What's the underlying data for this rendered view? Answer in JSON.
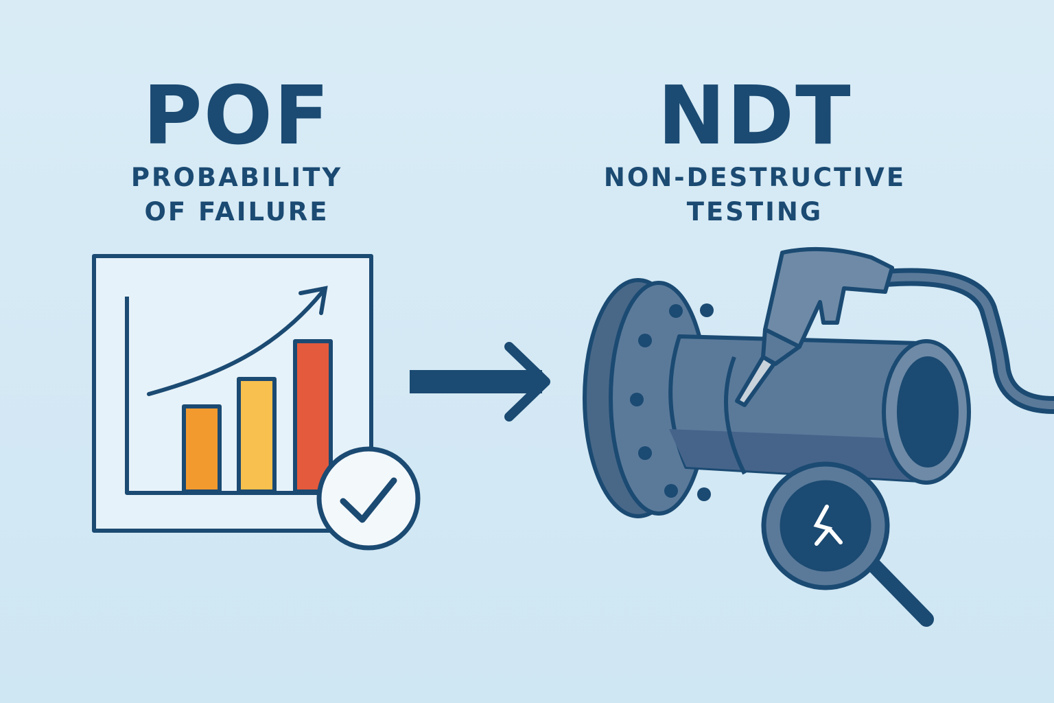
{
  "left": {
    "acronym": "POF",
    "subtitle_line1": "PROBABILITY",
    "subtitle_line2": "OF FAILURE"
  },
  "right": {
    "acronym": "NDT",
    "subtitle_line1": "NON-DESTRUCTIVE",
    "subtitle_line2": "TESTING"
  },
  "icons": [
    "bar-chart-icon",
    "trend-arrow-icon",
    "check-badge-icon",
    "right-arrow-icon",
    "pipe-flange-icon",
    "ultrasonic-probe-icon",
    "magnifier-crack-icon"
  ],
  "colors": {
    "primary": "#1b4a72",
    "background": "#d4e9f5",
    "bar1": "#f39a2e",
    "bar2": "#f8c04e",
    "bar3": "#e45a3c",
    "pipe": "#5b7a9a"
  }
}
